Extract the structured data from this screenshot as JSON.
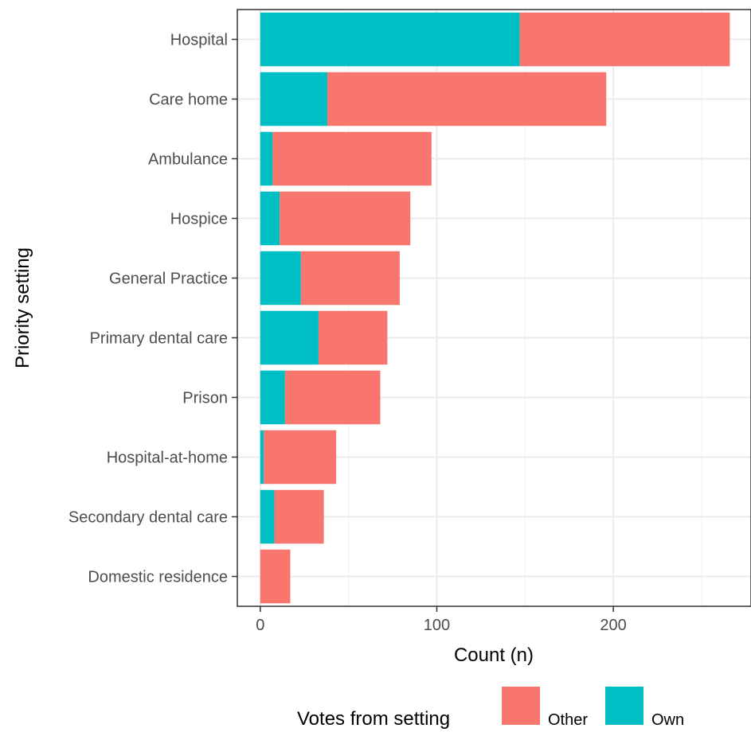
{
  "chart_data": {
    "type": "bar",
    "orientation": "horizontal",
    "stacked": true,
    "categories": [
      "Hospital",
      "Care home",
      "Ambulance",
      "Hospice",
      "General Practice",
      "Primary dental care",
      "Prison",
      "Hospital-at-home",
      "Secondary dental care",
      "Domestic residence"
    ],
    "series": [
      {
        "name": "Own",
        "color": "#00BFC4",
        "values": [
          147,
          38,
          7,
          11,
          23,
          33,
          14,
          2,
          8,
          0
        ]
      },
      {
        "name": "Other",
        "color": "#F8766D",
        "values": [
          119,
          158,
          90,
          74,
          56,
          39,
          54,
          41,
          28,
          17
        ]
      }
    ],
    "xlabel": "Count (n)",
    "ylabel": "Priority setting",
    "xlim": [
      -13,
      278
    ],
    "xticks": [
      0,
      100,
      200
    ],
    "grid": true,
    "legend": {
      "title": "Votes from setting",
      "placement": "bottom",
      "entries": [
        {
          "name": "Other",
          "color": "#F8766D"
        },
        {
          "name": "Own",
          "color": "#00BFC4"
        }
      ]
    }
  }
}
